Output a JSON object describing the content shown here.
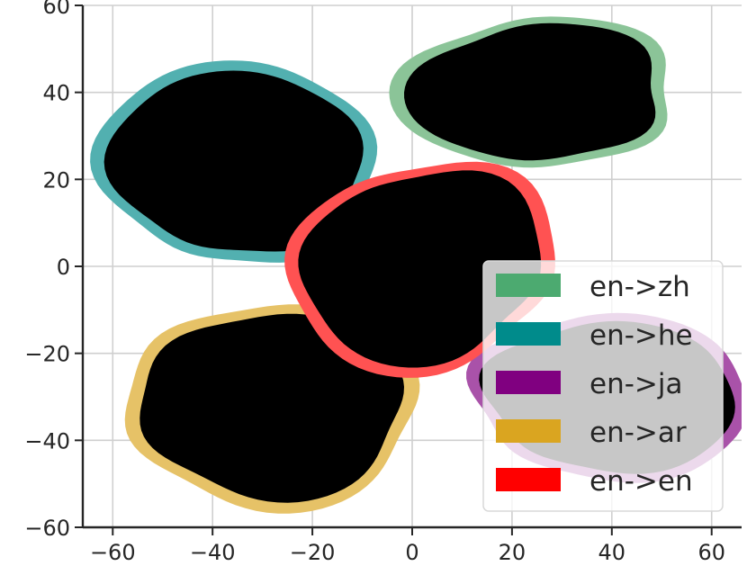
{
  "chart_data": {
    "type": "density-contour",
    "title": "",
    "xlabel": "",
    "ylabel": "",
    "xlim": [
      -66,
      66
    ],
    "ylim": [
      -60,
      60
    ],
    "xticks": [
      "−60",
      "−40",
      "−20",
      "0",
      "20",
      "40",
      "60"
    ],
    "yticks": [
      "60",
      "40",
      "20",
      "0",
      "−20",
      "−40",
      "−60"
    ],
    "grid": true,
    "legend_position": "lower-right",
    "series": [
      {
        "name": "en->zh",
        "color": "#55a868",
        "dark": "#3b5e47",
        "center": [
          25,
          40
        ],
        "spread": [
          27,
          18
        ],
        "seed": 1
      },
      {
        "name": "en->he",
        "color": "#008b8b",
        "dark": "#305a58",
        "center": [
          -35,
          24
        ],
        "spread": [
          27,
          24
        ],
        "seed": 2
      },
      {
        "name": "en->ja",
        "color": "#800080",
        "dark": "#4d4a6e",
        "center": [
          40,
          -30
        ],
        "spread": [
          28,
          19
        ],
        "seed": 3
      },
      {
        "name": "en->ar",
        "color": "#daa520",
        "dark": "#554c37",
        "center": [
          -28,
          -32
        ],
        "spread": [
          30,
          23
        ],
        "seed": 4
      },
      {
        "name": "en->en",
        "color": "#ff0000",
        "dark": "#6b4646",
        "center": [
          2,
          0
        ],
        "spread": [
          27,
          24
        ],
        "seed": 5
      }
    ],
    "legend_colors": [
      "#4caa70",
      "#008b8b",
      "#800080",
      "#daa520",
      "#ff0000"
    ]
  }
}
